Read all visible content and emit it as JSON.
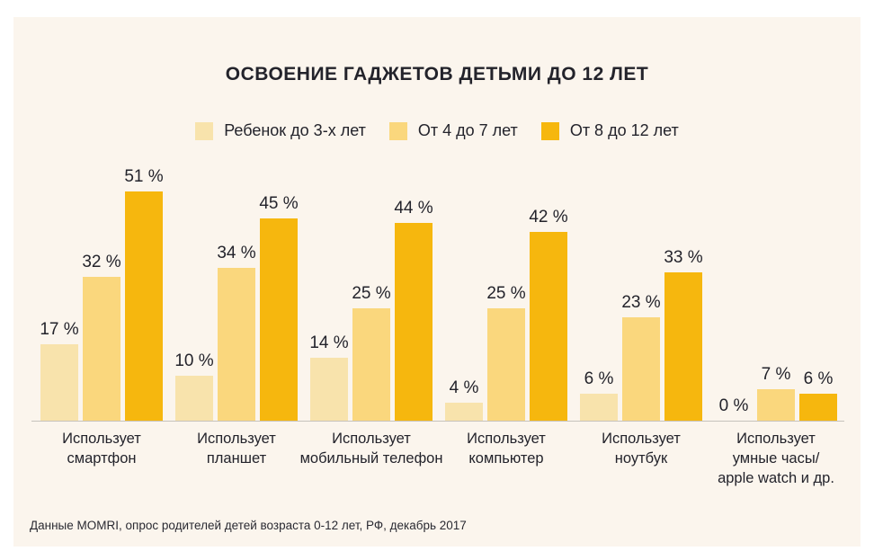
{
  "page": {
    "title": "ОСВОЕНИЕ ГАДЖЕТОВ ДЕТЬМИ ДО 12 ЛЕТ",
    "footer": "Данные MOMRI, опрос родителей детей возраста 0-12 лет,  РФ, декабрь 2017"
  },
  "colors": {
    "outer_background": "#FFFFFF",
    "panel_background": "#FBF5ED",
    "text": "#23232B",
    "axis_line": "#C6C2BC"
  },
  "chart_data": {
    "type": "bar",
    "title": "ОСВОЕНИЕ ГАДЖЕТОВ ДЕТЬМИ ДО 12 ЛЕТ",
    "categories": [
      "Использует смартфон",
      "Использует планшет",
      "Использует мобильный телефон",
      "Использует компьютер",
      "Использует ноутбук",
      "Использует умные часы/ apple watch и др."
    ],
    "category_label_lines": [
      [
        "Использует",
        "смартфон"
      ],
      [
        "Использует",
        "планшет"
      ],
      [
        "Использует",
        "мобильный телефон"
      ],
      [
        "Использует",
        "компьютер"
      ],
      [
        "Использует",
        "ноутбук"
      ],
      [
        "Использует",
        "умные часы/",
        "apple watch и др."
      ]
    ],
    "series": [
      {
        "name": "Ребенок до 3-х лет",
        "color": "#F8E3AC",
        "values": [
          17,
          10,
          14,
          4,
          6,
          0
        ]
      },
      {
        "name": "От 4 до 7 лет",
        "color": "#FAD77D",
        "values": [
          32,
          34,
          25,
          25,
          23,
          7
        ]
      },
      {
        "name": "От 8 до 12 лет",
        "color": "#F6B70E",
        "values": [
          51,
          45,
          44,
          42,
          33,
          6
        ]
      }
    ],
    "value_suffix": " %",
    "ylabel": "",
    "xlabel": "",
    "ylim": [
      0,
      55
    ],
    "grid": false,
    "legend_position": "top"
  }
}
